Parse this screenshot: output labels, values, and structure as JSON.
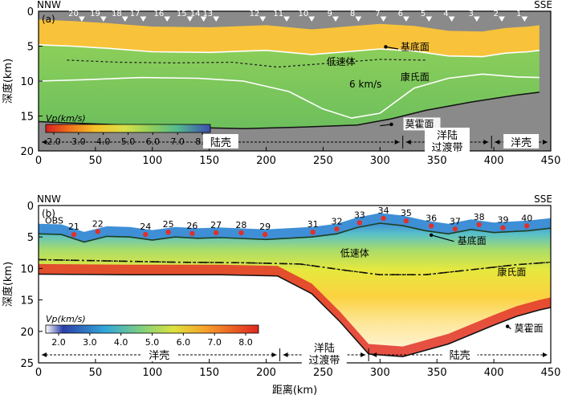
{
  "chart_data": [
    {
      "type": "heatmap",
      "panel_label": "(a)",
      "left_direction": "NNW",
      "right_direction": "SSE",
      "ylabel": "深度(km)",
      "xlim": [
        0,
        450
      ],
      "ylim": [
        20,
        0
      ],
      "xticks": [
        0,
        50,
        100,
        150,
        200,
        250,
        300,
        350,
        400,
        450
      ],
      "yticks": [
        0,
        5,
        10,
        15,
        20
      ],
      "obs_stations": [
        {
          "label": "20",
          "x": 38
        },
        {
          "label": "19",
          "x": 57
        },
        {
          "label": "18",
          "x": 76
        },
        {
          "label": "17",
          "x": 92
        },
        {
          "label": "16",
          "x": 113
        },
        {
          "label": "15",
          "x": 133
        },
        {
          "label": "14",
          "x": 145
        },
        {
          "label": "13",
          "x": 156
        },
        {
          "label": "12",
          "x": 197
        },
        {
          "label": "11",
          "x": 218
        },
        {
          "label": "10",
          "x": 240
        },
        {
          "label": "9",
          "x": 261
        },
        {
          "label": "8",
          "x": 281
        },
        {
          "label": "7",
          "x": 303
        },
        {
          "label": "6",
          "x": 323
        },
        {
          "label": "5",
          "x": 343
        },
        {
          "label": "4",
          "x": 363
        },
        {
          "label": "3",
          "x": 385
        },
        {
          "label": "2",
          "x": 407
        },
        {
          "label": "1",
          "x": 427
        }
      ],
      "interfaces": {
        "basement": {
          "label": "基底面",
          "points": [
            [
              0,
              4.8
            ],
            [
              30,
              5.0
            ],
            [
              60,
              5.3
            ],
            [
              100,
              5.8
            ],
            [
              150,
              5.9
            ],
            [
              200,
              5.6
            ],
            [
              240,
              6.2
            ],
            [
              270,
              5.8
            ],
            [
              300,
              5.4
            ],
            [
              330,
              5.7
            ],
            [
              360,
              6.4
            ],
            [
              390,
              6.5
            ],
            [
              410,
              6.0
            ],
            [
              430,
              5.8
            ],
            [
              440,
              5.6
            ]
          ]
        },
        "conrad": {
          "label": "康氏面",
          "points": [
            [
              0,
              10.0
            ],
            [
              40,
              9.8
            ],
            [
              90,
              9.5
            ],
            [
              140,
              9.6
            ],
            [
              180,
              10.0
            ],
            [
              220,
              11.5
            ],
            [
              250,
              14.0
            ],
            [
              275,
              15.3
            ],
            [
              300,
              14.6
            ],
            [
              330,
              11.0
            ],
            [
              360,
              9.6
            ],
            [
              390,
              9.0
            ],
            [
              420,
              9.4
            ],
            [
              440,
              9.5
            ]
          ]
        },
        "moho": {
          "label": "莫霍面",
          "points": [
            [
              0,
              15.8
            ],
            [
              60,
              16.2
            ],
            [
              120,
              16.6
            ],
            [
              180,
              16.8
            ],
            [
              230,
              16.6
            ],
            [
              280,
              16.3
            ],
            [
              310,
              15.4
            ],
            [
              340,
              14.2
            ],
            [
              380,
              13.0
            ],
            [
              420,
              12.0
            ],
            [
              440,
              11.6
            ]
          ]
        }
      },
      "low_velocity_label": "低速体",
      "contour_label": "6 km/s",
      "colorbar": {
        "title": "Vp(km/s)",
        "ticks": [
          2.0,
          3.0,
          4.0,
          5.0,
          6.0,
          7.0,
          8.0
        ]
      },
      "crust_segments": [
        {
          "label": "陆壳",
          "from": 0,
          "to": 320
        },
        {
          "label": "洋陆过渡带",
          "from": 320,
          "to": 398
        },
        {
          "label": "洋壳",
          "from": 398,
          "to": 450
        }
      ]
    },
    {
      "type": "heatmap",
      "panel_label": "(b)",
      "left_direction": "NNW",
      "right_direction": "SSE",
      "xlabel": "距离(km)",
      "ylabel": "深度(km)",
      "xlim": [
        0,
        450
      ],
      "ylim": [
        25,
        0
      ],
      "xticks": [
        0,
        50,
        100,
        150,
        200,
        250,
        300,
        350,
        400,
        450
      ],
      "yticks": [
        0,
        5,
        10,
        15,
        20,
        25
      ],
      "obs_prefix": "OBS",
      "obs_stations": [
        {
          "label": "21",
          "x": 31
        },
        {
          "label": "22",
          "x": 52
        },
        {
          "label": "24",
          "x": 94
        },
        {
          "label": "25",
          "x": 114
        },
        {
          "label": "26",
          "x": 135
        },
        {
          "label": "27",
          "x": 156
        },
        {
          "label": "28",
          "x": 178
        },
        {
          "label": "29",
          "x": 199
        },
        {
          "label": "31",
          "x": 241
        },
        {
          "label": "32",
          "x": 262
        },
        {
          "label": "33",
          "x": 282
        },
        {
          "label": "34",
          "x": 303
        },
        {
          "label": "35",
          "x": 323
        },
        {
          "label": "36",
          "x": 345
        },
        {
          "label": "37",
          "x": 366
        },
        {
          "label": "38",
          "x": 387
        },
        {
          "label": "39",
          "x": 408
        },
        {
          "label": "40",
          "x": 429
        }
      ],
      "interfaces": {
        "basement": {
          "label": "基底面",
          "points": [
            [
              0,
              4.5
            ],
            [
              20,
              4.6
            ],
            [
              40,
              5.8
            ],
            [
              60,
              4.9
            ],
            [
              80,
              5.0
            ],
            [
              100,
              5.5
            ],
            [
              120,
              5.0
            ],
            [
              140,
              5.2
            ],
            [
              160,
              5.1
            ],
            [
              200,
              5.4
            ],
            [
              240,
              5.0
            ],
            [
              262,
              4.5
            ],
            [
              280,
              3.5
            ],
            [
              300,
              2.8
            ],
            [
              320,
              3.2
            ],
            [
              340,
              4.0
            ],
            [
              360,
              4.5
            ],
            [
              380,
              3.8
            ],
            [
              400,
              4.3
            ],
            [
              430,
              4.0
            ],
            [
              450,
              3.6
            ]
          ]
        },
        "conrad": {
          "label": "康氏面",
          "points": [
            [
              0,
              8.6
            ],
            [
              60,
              8.8
            ],
            [
              120,
              9.0
            ],
            [
              180,
              9.1
            ],
            [
              230,
              9.3
            ],
            [
              270,
              10.3
            ],
            [
              300,
              11.0
            ],
            [
              340,
              11.0
            ],
            [
              380,
              10.2
            ],
            [
              420,
              9.4
            ],
            [
              450,
              9.0
            ]
          ]
        },
        "moho": {
          "label": "莫霍面",
          "points": [
            [
              0,
              10.9
            ],
            [
              80,
              11.0
            ],
            [
              160,
              11.0
            ],
            [
              210,
              11.2
            ],
            [
              240,
              14.0
            ],
            [
              265,
              18.5
            ],
            [
              290,
              23.6
            ],
            [
              320,
              24.0
            ],
            [
              360,
              22.0
            ],
            [
              400,
              19.0
            ],
            [
              420,
              17.6
            ],
            [
              440,
              16.6
            ],
            [
              450,
              16.2
            ]
          ]
        }
      },
      "low_velocity_label": "低速体",
      "colorbar": {
        "title": "Vp(km/s)",
        "ticks": [
          2.0,
          3.0,
          4.0,
          5.0,
          6.0,
          7.0,
          8.0
        ]
      },
      "crust_segments": [
        {
          "label": "洋壳",
          "from": 0,
          "to": 212
        },
        {
          "label": "洋陆过渡带",
          "from": 212,
          "to": 290
        },
        {
          "label": "陆壳",
          "from": 290,
          "to": 450
        }
      ]
    }
  ]
}
